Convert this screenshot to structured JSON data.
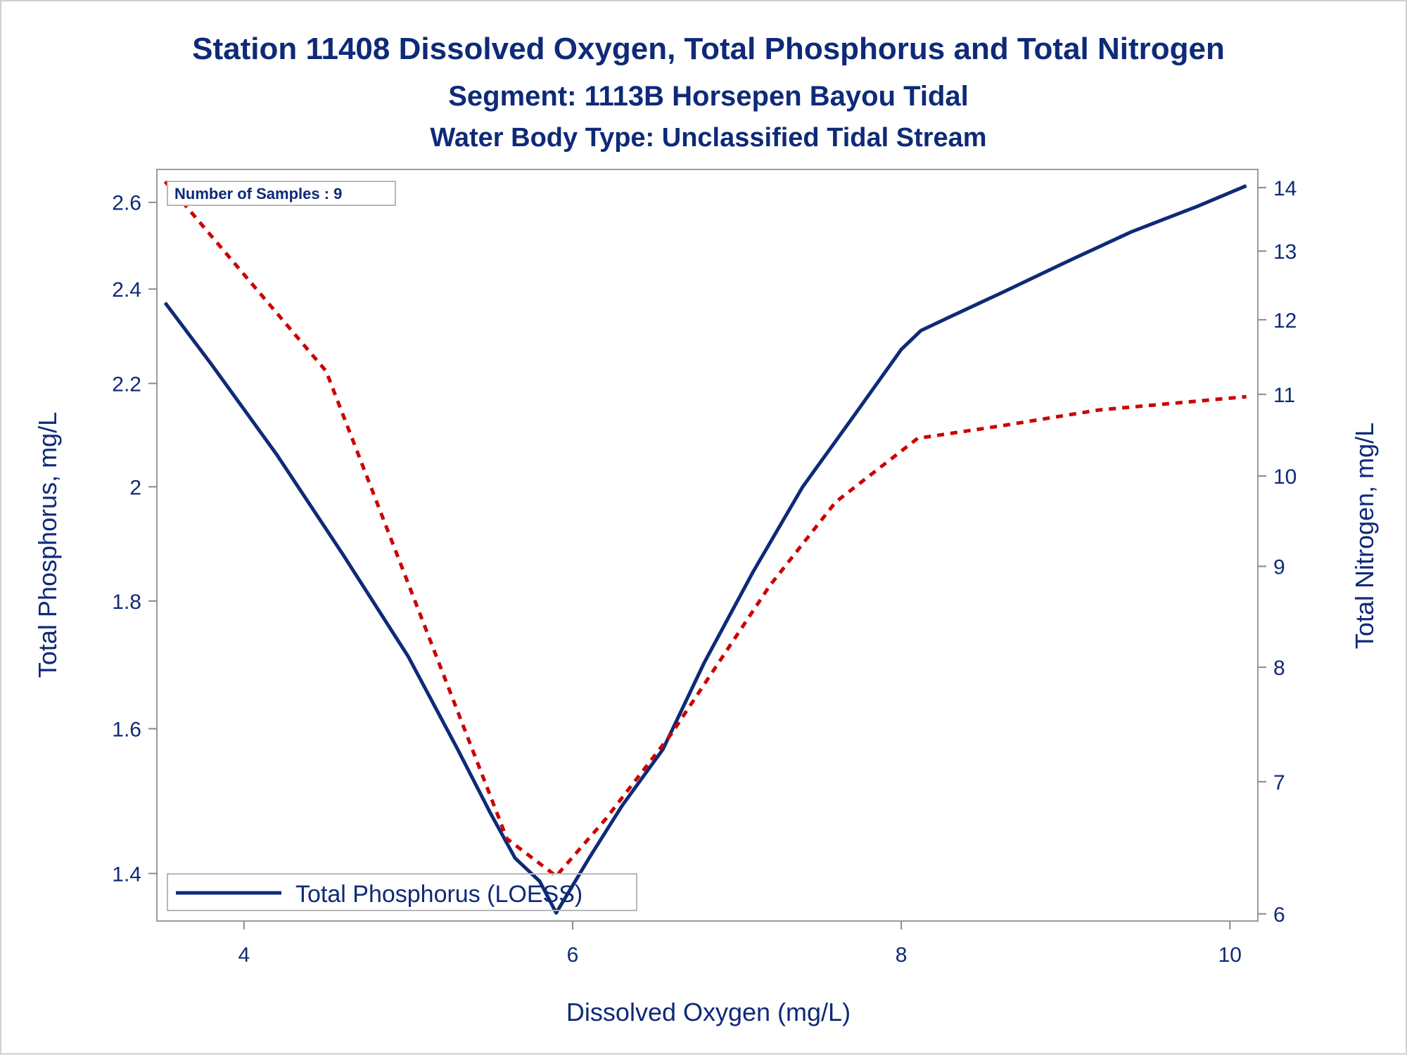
{
  "chart_data": {
    "type": "line",
    "title": "Station 11408  Dissolved Oxygen, Total Phosphorus and Total Nitrogen",
    "subtitle": "Segment: 1113B  Horsepen Bayou Tidal",
    "subtitle2": "Water Body Type: Unclassified Tidal Stream",
    "xlabel": "Dissolved Oxygen (mg/L)",
    "ylabel_left": "Total Phosphorus, mg/L",
    "ylabel_right": "Total Nitrogen, mg/L",
    "x_ticks": [
      "4",
      "6",
      "8",
      "10"
    ],
    "y_left_ticks": [
      "1.4",
      "1.6",
      "1.8",
      "2",
      "2.2",
      "2.4",
      "2.6"
    ],
    "y_right_ticks": [
      "6",
      "7",
      "8",
      "9",
      "10",
      "11",
      "12",
      "13",
      "14"
    ],
    "xlim": [
      3.47,
      10.17
    ],
    "ylim_left": [
      1.34,
      2.68
    ],
    "ylim_right": [
      5.95,
      14.3
    ],
    "scale": "log",
    "annotation": "Number of Samples : 9",
    "legend_position": "bottom-left",
    "legend_label": "Total Phosphorus (LOESS)",
    "colors": {
      "phosphorus": "#0e2a78",
      "nitrogen": "#cc0000",
      "text": "#0e2a78"
    },
    "series": [
      {
        "name": "Total Phosphorus (LOESS)",
        "axis": "left",
        "style": "solid",
        "x": [
          3.52,
          3.8,
          4.2,
          4.6,
          5.0,
          5.3,
          5.5,
          5.65,
          5.8,
          5.9,
          6.1,
          6.3,
          6.55,
          6.8,
          7.1,
          7.4,
          7.7,
          8.0,
          8.12,
          8.3,
          8.6,
          9.0,
          9.4,
          9.8,
          10.1
        ],
        "y": [
          2.37,
          2.24,
          2.06,
          1.88,
          1.71,
          1.57,
          1.48,
          1.42,
          1.39,
          1.35,
          1.42,
          1.49,
          1.57,
          1.7,
          1.85,
          2.0,
          2.13,
          2.27,
          2.31,
          2.34,
          2.39,
          2.46,
          2.53,
          2.59,
          2.64
        ]
      },
      {
        "name": "",
        "axis": "right",
        "style": "dashed",
        "x": [
          3.52,
          4.5,
          5.6,
          5.9,
          6.2,
          6.6,
          7.2,
          7.6,
          8.1,
          8.6,
          9.2,
          10.1
        ],
        "y": [
          14.1,
          11.3,
          6.55,
          6.27,
          6.7,
          7.4,
          8.8,
          9.7,
          10.45,
          10.6,
          10.8,
          10.97
        ]
      }
    ]
  }
}
